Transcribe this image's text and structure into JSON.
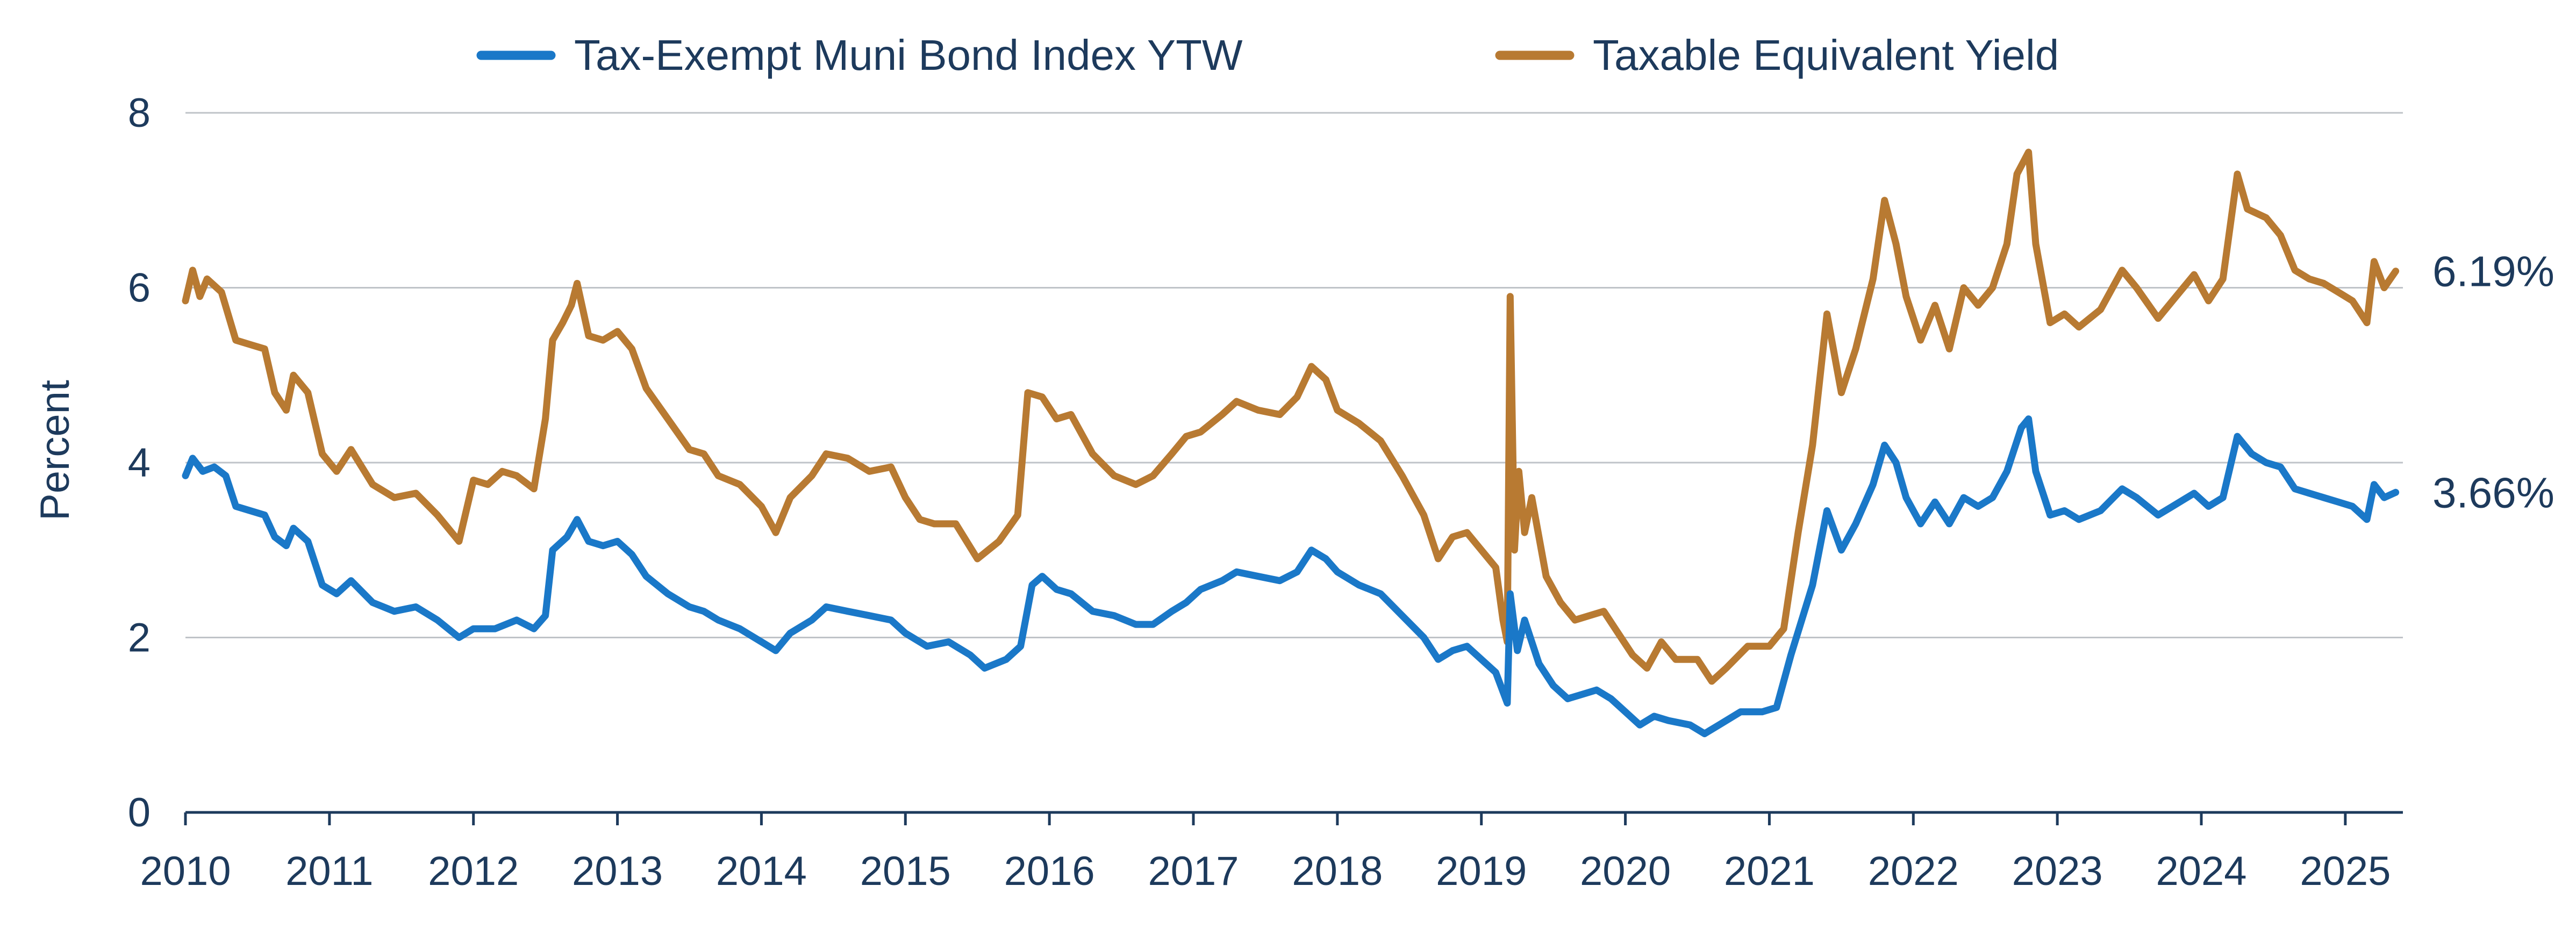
{
  "chart_data": {
    "type": "line",
    "title": "",
    "xlabel": "",
    "ylabel": "Percent",
    "ylim": [
      0,
      8
    ],
    "xlim": [
      2010,
      2025.4
    ],
    "y_ticks": [
      "0",
      "2",
      "4",
      "6",
      "8"
    ],
    "x_ticks": [
      "2010",
      "2011",
      "2012",
      "2013",
      "2014",
      "2015",
      "2016",
      "2017",
      "2018",
      "2019",
      "2020",
      "2021",
      "2022",
      "2023",
      "2024",
      "2025"
    ],
    "grid": true,
    "legend_position": "top",
    "series": [
      {
        "name": "Tax-Exempt Muni Bond Index YTW",
        "color": "#1a78c8",
        "end_label": "3.66%",
        "points": [
          [
            2010.0,
            3.85
          ],
          [
            2010.05,
            4.05
          ],
          [
            2010.12,
            3.9
          ],
          [
            2010.2,
            3.95
          ],
          [
            2010.28,
            3.85
          ],
          [
            2010.35,
            3.5
          ],
          [
            2010.45,
            3.45
          ],
          [
            2010.55,
            3.4
          ],
          [
            2010.62,
            3.15
          ],
          [
            2010.7,
            3.05
          ],
          [
            2010.75,
            3.25
          ],
          [
            2010.85,
            3.1
          ],
          [
            2010.95,
            2.6
          ],
          [
            2011.05,
            2.5
          ],
          [
            2011.15,
            2.65
          ],
          [
            2011.3,
            2.4
          ],
          [
            2011.45,
            2.3
          ],
          [
            2011.6,
            2.35
          ],
          [
            2011.75,
            2.2
          ],
          [
            2011.9,
            2.0
          ],
          [
            2012.0,
            2.1
          ],
          [
            2012.15,
            2.1
          ],
          [
            2012.3,
            2.2
          ],
          [
            2012.42,
            2.1
          ],
          [
            2012.5,
            2.25
          ],
          [
            2012.55,
            3.0
          ],
          [
            2012.65,
            3.15
          ],
          [
            2012.72,
            3.35
          ],
          [
            2012.8,
            3.1
          ],
          [
            2012.9,
            3.05
          ],
          [
            2013.0,
            3.1
          ],
          [
            2013.1,
            2.95
          ],
          [
            2013.2,
            2.7
          ],
          [
            2013.35,
            2.5
          ],
          [
            2013.5,
            2.35
          ],
          [
            2013.6,
            2.3
          ],
          [
            2013.7,
            2.2
          ],
          [
            2013.85,
            2.1
          ],
          [
            2014.0,
            1.95
          ],
          [
            2014.1,
            1.85
          ],
          [
            2014.2,
            2.05
          ],
          [
            2014.35,
            2.2
          ],
          [
            2014.45,
            2.35
          ],
          [
            2014.6,
            2.3
          ],
          [
            2014.75,
            2.25
          ],
          [
            2014.9,
            2.2
          ],
          [
            2015.0,
            2.05
          ],
          [
            2015.15,
            1.9
          ],
          [
            2015.3,
            1.95
          ],
          [
            2015.45,
            1.8
          ],
          [
            2015.55,
            1.65
          ],
          [
            2015.7,
            1.75
          ],
          [
            2015.8,
            1.9
          ],
          [
            2015.88,
            2.6
          ],
          [
            2015.95,
            2.7
          ],
          [
            2016.05,
            2.55
          ],
          [
            2016.15,
            2.5
          ],
          [
            2016.3,
            2.3
          ],
          [
            2016.45,
            2.25
          ],
          [
            2016.6,
            2.15
          ],
          [
            2016.72,
            2.15
          ],
          [
            2016.85,
            2.3
          ],
          [
            2016.95,
            2.4
          ],
          [
            2017.05,
            2.55
          ],
          [
            2017.2,
            2.65
          ],
          [
            2017.3,
            2.75
          ],
          [
            2017.45,
            2.7
          ],
          [
            2017.6,
            2.65
          ],
          [
            2017.72,
            2.75
          ],
          [
            2017.82,
            3.0
          ],
          [
            2017.92,
            2.9
          ],
          [
            2018.0,
            2.75
          ],
          [
            2018.15,
            2.6
          ],
          [
            2018.3,
            2.5
          ],
          [
            2018.45,
            2.25
          ],
          [
            2018.6,
            2.0
          ],
          [
            2018.7,
            1.75
          ],
          [
            2018.8,
            1.85
          ],
          [
            2018.9,
            1.9
          ],
          [
            2019.0,
            1.75
          ],
          [
            2019.1,
            1.6
          ],
          [
            2019.18,
            1.25
          ],
          [
            2019.2,
            2.5
          ],
          [
            2019.25,
            1.85
          ],
          [
            2019.3,
            2.2
          ],
          [
            2019.4,
            1.7
          ],
          [
            2019.5,
            1.45
          ],
          [
            2019.6,
            1.3
          ],
          [
            2019.7,
            1.35
          ],
          [
            2019.8,
            1.4
          ],
          [
            2019.9,
            1.3
          ],
          [
            2020.0,
            1.15
          ],
          [
            2020.1,
            1.0
          ],
          [
            2020.2,
            1.1
          ],
          [
            2020.3,
            1.05
          ],
          [
            2020.45,
            1.0
          ],
          [
            2020.55,
            0.9
          ],
          [
            2020.65,
            1.0
          ],
          [
            2020.8,
            1.15
          ],
          [
            2020.95,
            1.15
          ],
          [
            2021.05,
            1.2
          ],
          [
            2021.15,
            1.8
          ],
          [
            2021.3,
            2.6
          ],
          [
            2021.4,
            3.45
          ],
          [
            2021.5,
            3.0
          ],
          [
            2021.6,
            3.3
          ],
          [
            2021.72,
            3.75
          ],
          [
            2021.8,
            4.2
          ],
          [
            2021.88,
            4.0
          ],
          [
            2021.95,
            3.6
          ],
          [
            2022.05,
            3.3
          ],
          [
            2022.15,
            3.55
          ],
          [
            2022.25,
            3.3
          ],
          [
            2022.35,
            3.6
          ],
          [
            2022.45,
            3.5
          ],
          [
            2022.55,
            3.6
          ],
          [
            2022.65,
            3.9
          ],
          [
            2022.75,
            4.4
          ],
          [
            2022.8,
            4.5
          ],
          [
            2022.85,
            3.9
          ],
          [
            2022.95,
            3.4
          ],
          [
            2023.05,
            3.45
          ],
          [
            2023.15,
            3.35
          ],
          [
            2023.3,
            3.45
          ],
          [
            2023.45,
            3.7
          ],
          [
            2023.55,
            3.6
          ],
          [
            2023.7,
            3.4
          ],
          [
            2023.8,
            3.5
          ],
          [
            2023.95,
            3.65
          ],
          [
            2024.05,
            3.5
          ],
          [
            2024.15,
            3.6
          ],
          [
            2024.25,
            4.3
          ],
          [
            2024.35,
            4.1
          ],
          [
            2024.45,
            4.0
          ],
          [
            2024.55,
            3.95
          ],
          [
            2024.65,
            3.7
          ],
          [
            2024.75,
            3.65
          ],
          [
            2024.85,
            3.6
          ],
          [
            2024.95,
            3.55
          ],
          [
            2025.05,
            3.5
          ],
          [
            2025.15,
            3.35
          ],
          [
            2025.2,
            3.75
          ],
          [
            2025.27,
            3.6
          ],
          [
            2025.35,
            3.66
          ]
        ]
      },
      {
        "name": "Taxable Equivalent Yield",
        "color": "#b87a32",
        "end_label": "6.19%",
        "points": [
          [
            2010.0,
            5.85
          ],
          [
            2010.05,
            6.2
          ],
          [
            2010.1,
            5.9
          ],
          [
            2010.15,
            6.1
          ],
          [
            2010.25,
            5.95
          ],
          [
            2010.35,
            5.4
          ],
          [
            2010.45,
            5.35
          ],
          [
            2010.55,
            5.3
          ],
          [
            2010.62,
            4.8
          ],
          [
            2010.7,
            4.6
          ],
          [
            2010.75,
            5.0
          ],
          [
            2010.85,
            4.8
          ],
          [
            2010.95,
            4.1
          ],
          [
            2011.05,
            3.9
          ],
          [
            2011.15,
            4.15
          ],
          [
            2011.3,
            3.75
          ],
          [
            2011.45,
            3.6
          ],
          [
            2011.6,
            3.65
          ],
          [
            2011.75,
            3.4
          ],
          [
            2011.9,
            3.1
          ],
          [
            2012.0,
            3.8
          ],
          [
            2012.1,
            3.75
          ],
          [
            2012.2,
            3.9
          ],
          [
            2012.3,
            3.85
          ],
          [
            2012.42,
            3.7
          ],
          [
            2012.5,
            4.5
          ],
          [
            2012.55,
            5.4
          ],
          [
            2012.62,
            5.6
          ],
          [
            2012.68,
            5.8
          ],
          [
            2012.72,
            6.05
          ],
          [
            2012.8,
            5.45
          ],
          [
            2012.9,
            5.4
          ],
          [
            2013.0,
            5.5
          ],
          [
            2013.1,
            5.3
          ],
          [
            2013.2,
            4.85
          ],
          [
            2013.35,
            4.5
          ],
          [
            2013.5,
            4.15
          ],
          [
            2013.6,
            4.1
          ],
          [
            2013.7,
            3.85
          ],
          [
            2013.85,
            3.75
          ],
          [
            2014.0,
            3.5
          ],
          [
            2014.1,
            3.2
          ],
          [
            2014.2,
            3.6
          ],
          [
            2014.35,
            3.85
          ],
          [
            2014.45,
            4.1
          ],
          [
            2014.6,
            4.05
          ],
          [
            2014.75,
            3.9
          ],
          [
            2014.9,
            3.95
          ],
          [
            2015.0,
            3.6
          ],
          [
            2015.1,
            3.35
          ],
          [
            2015.2,
            3.3
          ],
          [
            2015.35,
            3.3
          ],
          [
            2015.5,
            2.9
          ],
          [
            2015.65,
            3.1
          ],
          [
            2015.78,
            3.4
          ],
          [
            2015.85,
            4.8
          ],
          [
            2015.95,
            4.75
          ],
          [
            2016.05,
            4.5
          ],
          [
            2016.15,
            4.55
          ],
          [
            2016.3,
            4.1
          ],
          [
            2016.45,
            3.85
          ],
          [
            2016.6,
            3.75
          ],
          [
            2016.72,
            3.85
          ],
          [
            2016.85,
            4.1
          ],
          [
            2016.95,
            4.3
          ],
          [
            2017.05,
            4.35
          ],
          [
            2017.2,
            4.55
          ],
          [
            2017.3,
            4.7
          ],
          [
            2017.45,
            4.6
          ],
          [
            2017.6,
            4.55
          ],
          [
            2017.72,
            4.75
          ],
          [
            2017.82,
            5.1
          ],
          [
            2017.92,
            4.95
          ],
          [
            2018.0,
            4.6
          ],
          [
            2018.15,
            4.45
          ],
          [
            2018.3,
            4.25
          ],
          [
            2018.45,
            3.85
          ],
          [
            2018.6,
            3.4
          ],
          [
            2018.7,
            2.9
          ],
          [
            2018.8,
            3.15
          ],
          [
            2018.9,
            3.2
          ],
          [
            2019.0,
            3.0
          ],
          [
            2019.1,
            2.8
          ],
          [
            2019.15,
            2.2
          ],
          [
            2019.18,
            1.95
          ],
          [
            2019.2,
            5.9
          ],
          [
            2019.23,
            3.0
          ],
          [
            2019.26,
            3.9
          ],
          [
            2019.3,
            3.2
          ],
          [
            2019.35,
            3.6
          ],
          [
            2019.45,
            2.7
          ],
          [
            2019.55,
            2.4
          ],
          [
            2019.65,
            2.2
          ],
          [
            2019.75,
            2.25
          ],
          [
            2019.85,
            2.3
          ],
          [
            2019.95,
            2.05
          ],
          [
            2020.05,
            1.8
          ],
          [
            2020.15,
            1.65
          ],
          [
            2020.25,
            1.95
          ],
          [
            2020.35,
            1.75
          ],
          [
            2020.5,
            1.75
          ],
          [
            2020.6,
            1.5
          ],
          [
            2020.7,
            1.65
          ],
          [
            2020.85,
            1.9
          ],
          [
            2021.0,
            1.9
          ],
          [
            2021.1,
            2.1
          ],
          [
            2021.2,
            3.2
          ],
          [
            2021.3,
            4.2
          ],
          [
            2021.4,
            5.7
          ],
          [
            2021.5,
            4.8
          ],
          [
            2021.6,
            5.3
          ],
          [
            2021.72,
            6.1
          ],
          [
            2021.8,
            7.0
          ],
          [
            2021.88,
            6.5
          ],
          [
            2021.95,
            5.9
          ],
          [
            2022.05,
            5.4
          ],
          [
            2022.15,
            5.8
          ],
          [
            2022.25,
            5.3
          ],
          [
            2022.35,
            6.0
          ],
          [
            2022.45,
            5.8
          ],
          [
            2022.55,
            6.0
          ],
          [
            2022.65,
            6.5
          ],
          [
            2022.72,
            7.3
          ],
          [
            2022.8,
            7.55
          ],
          [
            2022.85,
            6.5
          ],
          [
            2022.95,
            5.6
          ],
          [
            2023.05,
            5.7
          ],
          [
            2023.15,
            5.55
          ],
          [
            2023.3,
            5.75
          ],
          [
            2023.45,
            6.2
          ],
          [
            2023.55,
            6.0
          ],
          [
            2023.7,
            5.65
          ],
          [
            2023.8,
            5.85
          ],
          [
            2023.95,
            6.15
          ],
          [
            2024.05,
            5.85
          ],
          [
            2024.15,
            6.1
          ],
          [
            2024.25,
            7.3
          ],
          [
            2024.32,
            6.9
          ],
          [
            2024.45,
            6.8
          ],
          [
            2024.55,
            6.6
          ],
          [
            2024.65,
            6.2
          ],
          [
            2024.75,
            6.1
          ],
          [
            2024.85,
            6.05
          ],
          [
            2024.95,
            5.95
          ],
          [
            2025.05,
            5.85
          ],
          [
            2025.15,
            5.6
          ],
          [
            2025.2,
            6.3
          ],
          [
            2025.27,
            6.0
          ],
          [
            2025.35,
            6.19
          ]
        ]
      }
    ]
  }
}
